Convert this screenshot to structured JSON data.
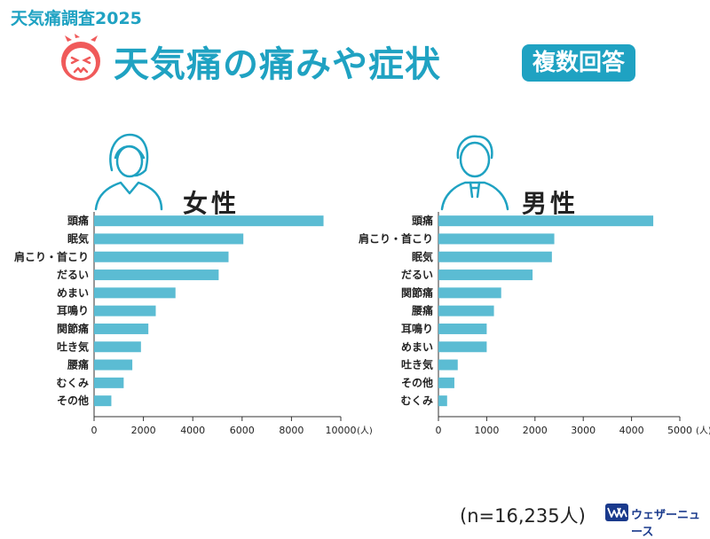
{
  "header": {
    "survey_tag": "天気痛調査2025",
    "title": "天気痛の痛みや症状",
    "badge": "複数回答"
  },
  "colors": {
    "accent": "#1fa2c2",
    "bar": "#5bbcd3",
    "face": "#f05a5a",
    "brand": "#1a3a8c"
  },
  "icons": {
    "face": "pained-face-icon",
    "female": "woman-avatar-icon",
    "male": "man-avatar-icon"
  },
  "chart_data": [
    {
      "type": "bar",
      "orientation": "horizontal",
      "title": "女性",
      "categories": [
        "頭痛",
        "眠気",
        "肩こり・首こり",
        "だるい",
        "めまい",
        "耳鳴り",
        "関節痛",
        "吐き気",
        "腰痛",
        "むくみ",
        "その他"
      ],
      "values": [
        9300,
        6050,
        5450,
        5050,
        3300,
        2500,
        2200,
        1900,
        1550,
        1200,
        700
      ],
      "xlim": [
        0,
        10000
      ],
      "xticks": [
        "0",
        "2000",
        "4000",
        "6000",
        "8000",
        "10000"
      ],
      "unit": "(人)"
    },
    {
      "type": "bar",
      "orientation": "horizontal",
      "title": "男性",
      "categories": [
        "頭痛",
        "肩こり・首こり",
        "眠気",
        "だるい",
        "関節痛",
        "腰痛",
        "耳鳴り",
        "めまい",
        "吐き気",
        "その他",
        "むくみ"
      ],
      "values": [
        4450,
        2400,
        2350,
        1950,
        1300,
        1150,
        1000,
        1000,
        400,
        330,
        180
      ],
      "xlim": [
        0,
        5000
      ],
      "xticks": [
        "0",
        "1000",
        "2000",
        "3000",
        "4000",
        "5000"
      ],
      "unit": "(人)"
    }
  ],
  "footer": {
    "sample_size": "(n=16,235人)",
    "brand": "ウェザーニュース"
  }
}
